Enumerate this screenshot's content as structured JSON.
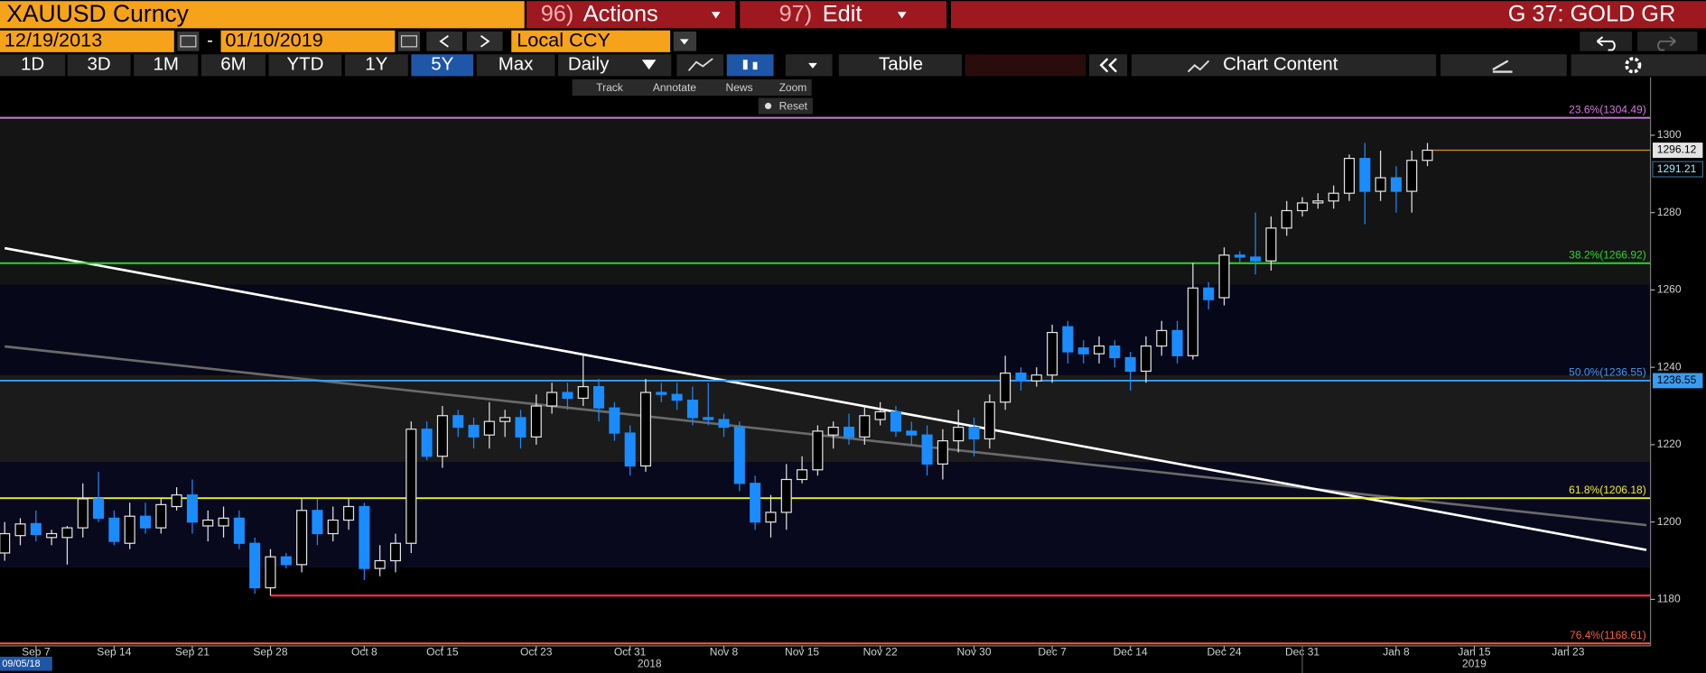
{
  "header": {
    "security": "XAUUSD Curncy",
    "actions_num": "96)",
    "actions": "Actions",
    "edit_num": "97)",
    "edit": "Edit",
    "page_code": "G 37: GOLD GR"
  },
  "toolbar": {
    "start_date": "12/19/2013",
    "date_separator": "-",
    "end_date": "01/10/2019",
    "currency": "Local CCY"
  },
  "periods": [
    "1D",
    "3D",
    "1M",
    "6M",
    "YTD",
    "1Y",
    "5Y",
    "Max"
  ],
  "selected_period": 6,
  "frequency": "Daily",
  "table_button": "Table",
  "chart_content": "Chart Content",
  "chart_tools": [
    "Track",
    "Annotate",
    "News",
    "Zoom"
  ],
  "reset": "Reset",
  "years": [
    "2018",
    "2019"
  ],
  "first_date": "09/05/18",
  "chart_data": {
    "type": "candlestick",
    "categories": [
      null,
      null,
      "Sep 7",
      null,
      null,
      null,
      null,
      "Sep 14",
      null,
      null,
      null,
      null,
      "Sep 21",
      null,
      null,
      null,
      null,
      "Sep 28",
      null,
      null,
      null,
      null,
      null,
      "Oct 8",
      null,
      null,
      null,
      null,
      "Oct 15",
      null,
      null,
      null,
      null,
      null,
      "Oct 23",
      null,
      null,
      null,
      null,
      null,
      "Oct 31",
      null,
      null,
      null,
      null,
      null,
      "Nov 8",
      null,
      null,
      null,
      null,
      "Nov 15",
      null,
      null,
      null,
      null,
      "Nov 22",
      null,
      null,
      null,
      null,
      null,
      "Nov 30",
      null,
      null,
      null,
      null,
      "Dec 7",
      null,
      null,
      null,
      null,
      "Dec 14",
      null,
      null,
      null,
      null,
      null,
      "Dec 24",
      null,
      null,
      null,
      null,
      "Dec 31",
      null,
      null,
      null,
      null,
      null,
      "Jan 8",
      null,
      null,
      null,
      null,
      "Jan 15",
      null,
      null,
      null,
      null,
      null,
      "Jan 23",
      null,
      null,
      null,
      null,
      null
    ],
    "open": [
      1192,
      1196.5,
      1199.6,
      1196,
      1196,
      1198.5,
      1206,
      1201,
      1194.5,
      1201.5,
      1198.5,
      1204,
      1207,
      1199,
      1199,
      1201,
      1194.5,
      1183,
      1191,
      1189,
      1203,
      1197,
      1200.5,
      1204,
      1188,
      1190,
      1194.5,
      1224,
      1217,
      1227.5,
      1225,
      1222.5,
      1226,
      1227,
      1222,
      1230,
      1233.5,
      1232,
      1235,
      1229.5,
      1223,
      1214.5,
      1233.5,
      1233,
      1231.5,
      1227,
      1226.5,
      1224.5,
      1210,
      1200,
      1202.5,
      1211,
      1213.5,
      1222.5,
      1224.5,
      1222,
      1226.5,
      1228.5,
      1223.5,
      1222.5,
      1215,
      1221,
      1224.5,
      1221.5,
      1231,
      1238.5,
      1236.5,
      1238,
      1250.5,
      1245,
      1243.5,
      1245.5,
      1242.5,
      1239,
      1245.5,
      1249.5,
      1243,
      1260.5,
      1258,
      1269,
      1268.5,
      1267.5,
      1276,
      1280.5,
      1282.5,
      1283,
      1285,
      1294,
      1285.5,
      1289,
      1285.5,
      1293.5,
      null,
      null,
      null,
      null,
      null,
      null,
      null,
      null,
      null,
      null,
      null,
      null,
      null,
      null
    ],
    "high": [
      1200,
      1201,
      1203,
      1198,
      1199,
      1210,
      1213,
      1203,
      1205,
      1205,
      1206,
      1209,
      1211,
      1203,
      1204,
      1203,
      1196,
      1193,
      1192,
      1206,
      1206,
      1204,
      1206,
      1205,
      1194,
      1197,
      1226,
      1226,
      1230,
      1229,
      1227,
      1231,
      1229,
      1229,
      1233,
      1236,
      1236,
      1243,
      1237,
      1231,
      1225,
      1237,
      1236,
      1236,
      1235,
      1236,
      1228,
      1226,
      1212,
      1207,
      1215,
      1217,
      1225,
      1226,
      1228,
      1230,
      1231,
      1230,
      1226,
      1225,
      1224,
      1229,
      1227,
      1233,
      1243,
      1240,
      1240,
      1251,
      1252,
      1247,
      1248,
      1247,
      1244,
      1248,
      1252,
      1252,
      1267,
      1262,
      1271,
      1270,
      1280,
      1279,
      1283,
      1284,
      1285,
      1287,
      1295,
      1298,
      1296,
      1292,
      1296,
      1298,
      null,
      null,
      null,
      null,
      null,
      null,
      null,
      null,
      null,
      null,
      null,
      null,
      null,
      null
    ],
    "low": [
      1190,
      1194,
      1195,
      1194,
      1189,
      1196,
      1200,
      1194,
      1193,
      1197,
      1197,
      1203,
      1197,
      1195,
      1196,
      1193,
      1181.5,
      1181,
      1188,
      1187,
      1194,
      1195,
      1198,
      1185,
      1186,
      1187,
      1192,
      1216,
      1214,
      1222,
      1219,
      1219,
      1222,
      1219,
      1220,
      1228,
      1229,
      1230,
      1226,
      1221,
      1212,
      1213,
      1231,
      1229,
      1225,
      1225,
      1222,
      1208,
      1198,
      1196,
      1198,
      1210,
      1212,
      1219,
      1220,
      1220,
      1225,
      1222,
      1220,
      1212,
      1211,
      1218,
      1217,
      1219,
      1229,
      1234,
      1235,
      1236,
      1241,
      1241,
      1241,
      1240,
      1234,
      1236,
      1243,
      1241,
      1242,
      1255,
      1256,
      1267,
      1264,
      1265,
      1274,
      1279,
      1281,
      1281,
      1283,
      1277,
      1283,
      1280,
      1280,
      1292,
      null,
      null,
      null,
      null,
      null,
      null,
      null,
      null,
      null,
      null,
      null,
      null,
      null,
      null
    ],
    "close": [
      1197,
      1199.5,
      1196.8,
      1197,
      1198.5,
      1206,
      1201,
      1195,
      1201.5,
      1198.5,
      1204.5,
      1207,
      1200,
      1200.5,
      1201,
      1194.5,
      1183,
      1191,
      1189,
      1203,
      1197,
      1200.5,
      1204,
      1188,
      1190,
      1194.5,
      1224,
      1217,
      1227.5,
      1224.5,
      1222,
      1226,
      1227,
      1222,
      1230,
      1233.5,
      1232,
      1235,
      1229.5,
      1223,
      1214.5,
      1233.5,
      1233,
      1231.5,
      1227,
      1226.5,
      1224.5,
      1210,
      1200,
      1202.5,
      1211,
      1213.5,
      1223.5,
      1224.5,
      1222,
      1227.5,
      1228.5,
      1223.5,
      1222.5,
      1215,
      1221,
      1224.5,
      1221.5,
      1231,
      1238.5,
      1236.5,
      1238,
      1249,
      1244,
      1243.5,
      1245.5,
      1242.5,
      1239,
      1245.5,
      1249.5,
      1243,
      1260.5,
      1257.5,
      1269,
      1268.5,
      1267.5,
      1276,
      1280.5,
      1282.5,
      1283,
      1285,
      1294,
      1285.5,
      1289,
      1285.5,
      1293.5,
      1296.12,
      null,
      null,
      null,
      null,
      null,
      null,
      null,
      null,
      null,
      null,
      null,
      null,
      null,
      null
    ],
    "up_color": "#e6e6e6",
    "down_color": "#1a8cff",
    "ylim": [
      1168,
      1315
    ],
    "yticks": [
      1180,
      1200,
      1220,
      1240,
      1260,
      1280,
      1300
    ],
    "fib_levels": [
      {
        "label": "23.6%(1304.49)",
        "value": 1304.49,
        "color": "#d47ae0"
      },
      {
        "label": "38.2%(1266.92)",
        "value": 1266.92,
        "color": "#22dd22"
      },
      {
        "label": "50.0%(1236.55)",
        "value": 1236.55,
        "color": "#3a9cf0"
      },
      {
        "label": "61.8%(1206.18)",
        "value": 1206.18,
        "color": "#f0f020"
      },
      {
        "label": "76.4%(1168.61)",
        "value": 1168.61,
        "color": "#ff5a3c"
      }
    ],
    "support_line": {
      "value": 1181,
      "color": "#ff2a4a"
    },
    "trendlines": [
      {
        "values": [
          1245.4,
          1199.2
        ],
        "color": "#6a6a6a"
      },
      {
        "values": [
          1270.8,
          1192.8
        ],
        "color": "#ffffff"
      }
    ],
    "secondary_price": 1291.21
  }
}
